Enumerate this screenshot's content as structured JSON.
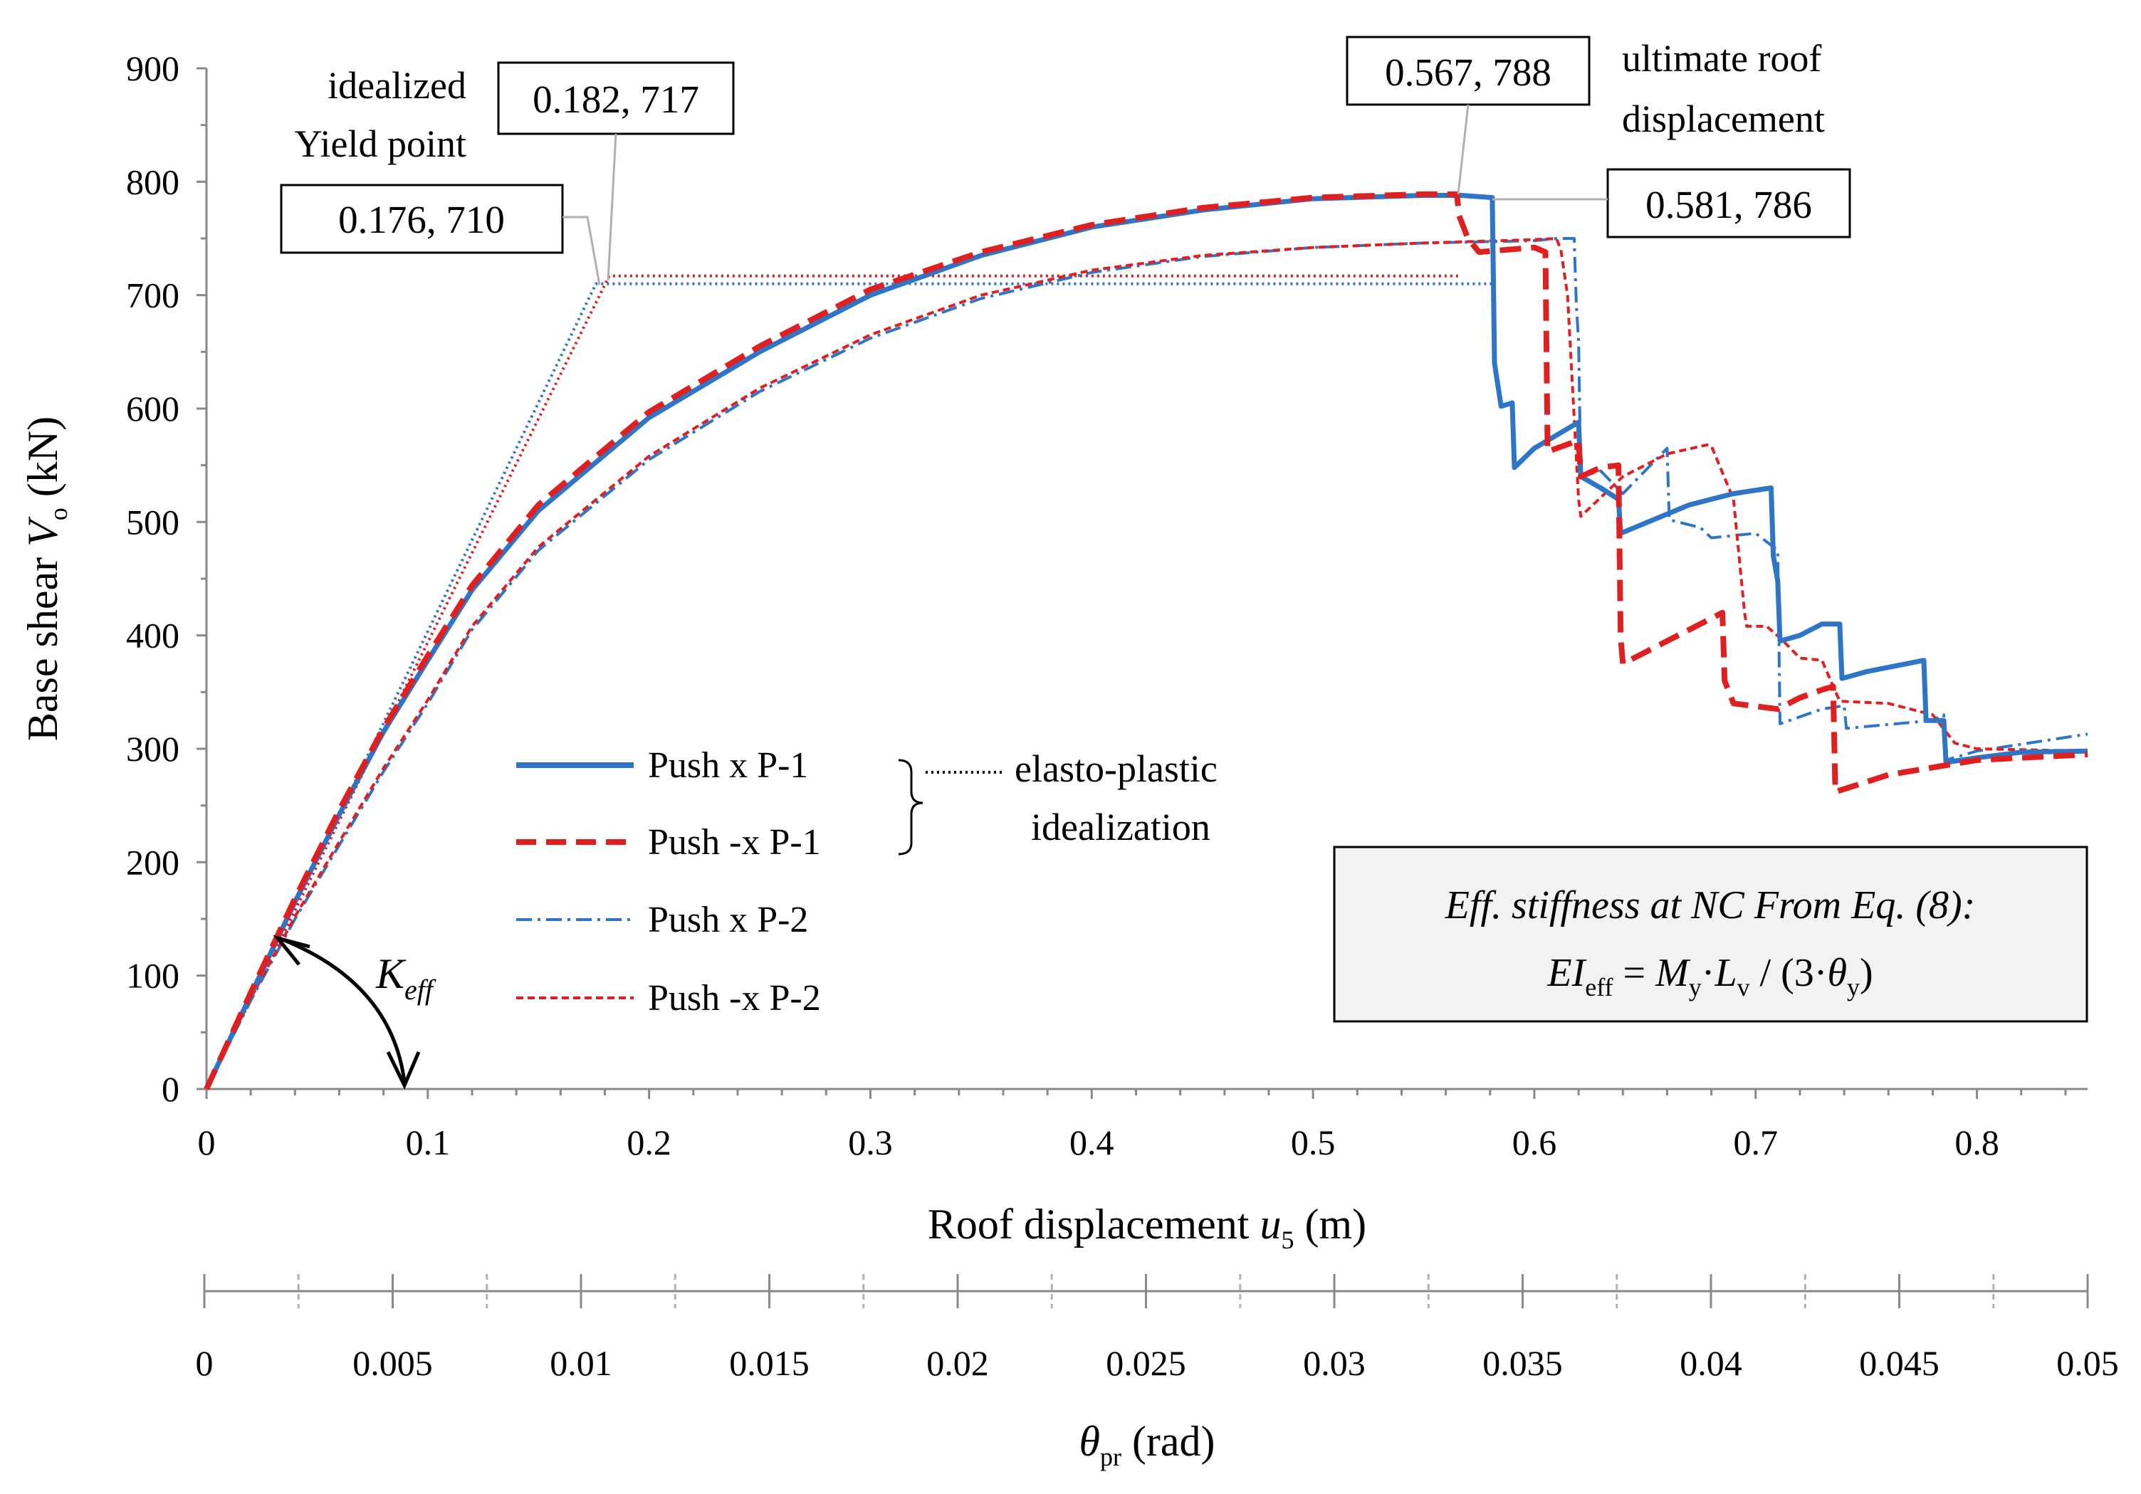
{
  "chart_data": {
    "type": "line",
    "xlabel": {
      "main": "Roof displacement ",
      "var": "u",
      "sub": "5",
      "unit": " (m)"
    },
    "ylabel": {
      "main": "Base shear ",
      "var": "V",
      "sub": "o",
      "unit": " (kN)"
    },
    "xlim": [
      0,
      0.85
    ],
    "ylim": [
      0,
      900
    ],
    "x_ticks": [
      0,
      0.1,
      0.2,
      0.3,
      0.4,
      0.5,
      0.6,
      0.7,
      0.8
    ],
    "x_tick_labels": [
      "0",
      "0.1",
      "0.2",
      "0.3",
      "0.4",
      "0.5",
      "0.6",
      "0.7",
      "0.8"
    ],
    "y_ticks": [
      0,
      100,
      200,
      300,
      400,
      500,
      600,
      700,
      800,
      900
    ],
    "y_tick_labels": [
      "0",
      "100",
      "200",
      "300",
      "400",
      "500",
      "600",
      "700",
      "800",
      "900"
    ],
    "secondary_xaxis": {
      "label_var": "θ",
      "label_sub": "pr",
      "label_unit": " (rad)",
      "range": [
        0,
        0.05
      ],
      "ticks": [
        0,
        0.005,
        0.01,
        0.015,
        0.02,
        0.025,
        0.03,
        0.035,
        0.04,
        0.045,
        0.05
      ],
      "tick_labels": [
        "0",
        "0.005",
        "0.01",
        "0.015",
        "0.02",
        "0.025",
        "0.03",
        "0.035",
        "0.04",
        "0.045",
        "0.05"
      ]
    },
    "series": [
      {
        "name": "Push x P-1",
        "color": "#2e75c8",
        "style": "solid",
        "points": [
          [
            0,
            0
          ],
          [
            0.02,
            83
          ],
          [
            0.04,
            165
          ],
          [
            0.06,
            242
          ],
          [
            0.08,
            315
          ],
          [
            0.1,
            378
          ],
          [
            0.12,
            440
          ],
          [
            0.15,
            510
          ],
          [
            0.2,
            592
          ],
          [
            0.25,
            650
          ],
          [
            0.3,
            700
          ],
          [
            0.35,
            735
          ],
          [
            0.4,
            760
          ],
          [
            0.45,
            775
          ],
          [
            0.5,
            785
          ],
          [
            0.55,
            788
          ],
          [
            0.567,
            788
          ],
          [
            0.581,
            786
          ],
          [
            0.582,
            640
          ],
          [
            0.585,
            602
          ],
          [
            0.59,
            605
          ],
          [
            0.591,
            548
          ],
          [
            0.6,
            565
          ],
          [
            0.62,
            588
          ],
          [
            0.621,
            540
          ],
          [
            0.63,
            530
          ],
          [
            0.638,
            520
          ],
          [
            0.639,
            490
          ],
          [
            0.67,
            515
          ],
          [
            0.69,
            525
          ],
          [
            0.707,
            530
          ],
          [
            0.708,
            470
          ],
          [
            0.71,
            448
          ],
          [
            0.711,
            395
          ],
          [
            0.72,
            400
          ],
          [
            0.73,
            410
          ],
          [
            0.738,
            410
          ],
          [
            0.739,
            362
          ],
          [
            0.75,
            368
          ],
          [
            0.776,
            378
          ],
          [
            0.777,
            325
          ],
          [
            0.785,
            325
          ],
          [
            0.786,
            288
          ],
          [
            0.8,
            292
          ],
          [
            0.82,
            297
          ],
          [
            0.85,
            298
          ]
        ]
      },
      {
        "name": "Push -x P-1",
        "color": "#e02020",
        "style": "dashed",
        "points": [
          [
            0,
            0
          ],
          [
            0.02,
            85
          ],
          [
            0.04,
            168
          ],
          [
            0.06,
            246
          ],
          [
            0.08,
            318
          ],
          [
            0.1,
            382
          ],
          [
            0.12,
            444
          ],
          [
            0.15,
            515
          ],
          [
            0.2,
            597
          ],
          [
            0.25,
            655
          ],
          [
            0.3,
            705
          ],
          [
            0.35,
            738
          ],
          [
            0.4,
            762
          ],
          [
            0.45,
            777
          ],
          [
            0.5,
            786
          ],
          [
            0.55,
            789
          ],
          [
            0.565,
            789
          ],
          [
            0.566,
            770
          ],
          [
            0.57,
            750
          ],
          [
            0.575,
            738
          ],
          [
            0.6,
            742
          ],
          [
            0.605,
            738
          ],
          [
            0.606,
            562
          ],
          [
            0.62,
            572
          ],
          [
            0.621,
            540
          ],
          [
            0.63,
            548
          ],
          [
            0.638,
            550
          ],
          [
            0.639,
            398
          ],
          [
            0.64,
            375
          ],
          [
            0.66,
            395
          ],
          [
            0.685,
            420
          ],
          [
            0.686,
            360
          ],
          [
            0.69,
            340
          ],
          [
            0.71,
            335
          ],
          [
            0.72,
            345
          ],
          [
            0.73,
            352
          ],
          [
            0.735,
            355
          ],
          [
            0.736,
            262
          ],
          [
            0.76,
            277
          ],
          [
            0.8,
            290
          ],
          [
            0.85,
            295
          ]
        ]
      },
      {
        "name": "Push x P-2",
        "color": "#2e75c8",
        "style": "dashdot",
        "points": [
          [
            0,
            0
          ],
          [
            0.02,
            78
          ],
          [
            0.04,
            150
          ],
          [
            0.06,
            215
          ],
          [
            0.08,
            280
          ],
          [
            0.1,
            340
          ],
          [
            0.12,
            405
          ],
          [
            0.15,
            475
          ],
          [
            0.2,
            555
          ],
          [
            0.25,
            615
          ],
          [
            0.3,
            662
          ],
          [
            0.35,
            697
          ],
          [
            0.4,
            720
          ],
          [
            0.45,
            734
          ],
          [
            0.5,
            742
          ],
          [
            0.55,
            746
          ],
          [
            0.6,
            748
          ],
          [
            0.61,
            750
          ],
          [
            0.618,
            750
          ],
          [
            0.619,
            690
          ],
          [
            0.62,
            660
          ],
          [
            0.621,
            540
          ],
          [
            0.63,
            545
          ],
          [
            0.64,
            525
          ],
          [
            0.66,
            565
          ],
          [
            0.661,
            502
          ],
          [
            0.675,
            495
          ],
          [
            0.68,
            486
          ],
          [
            0.7,
            490
          ],
          [
            0.71,
            475
          ],
          [
            0.711,
            322
          ],
          [
            0.73,
            335
          ],
          [
            0.74,
            338
          ],
          [
            0.741,
            318
          ],
          [
            0.78,
            325
          ],
          [
            0.785,
            330
          ],
          [
            0.786,
            290
          ],
          [
            0.8,
            298
          ],
          [
            0.85,
            313
          ]
        ]
      },
      {
        "name": "Push -x P-2",
        "color": "#e02020",
        "style": "shortdash",
        "points": [
          [
            0,
            0
          ],
          [
            0.02,
            80
          ],
          [
            0.04,
            152
          ],
          [
            0.06,
            218
          ],
          [
            0.08,
            283
          ],
          [
            0.1,
            343
          ],
          [
            0.12,
            408
          ],
          [
            0.15,
            478
          ],
          [
            0.2,
            558
          ],
          [
            0.25,
            618
          ],
          [
            0.3,
            665
          ],
          [
            0.35,
            700
          ],
          [
            0.4,
            722
          ],
          [
            0.45,
            735
          ],
          [
            0.5,
            742
          ],
          [
            0.55,
            746
          ],
          [
            0.6,
            749
          ],
          [
            0.61,
            750
          ],
          [
            0.612,
            740
          ],
          [
            0.615,
            700
          ],
          [
            0.62,
            520
          ],
          [
            0.621,
            505
          ],
          [
            0.64,
            540
          ],
          [
            0.66,
            560
          ],
          [
            0.678,
            568
          ],
          [
            0.68,
            567
          ],
          [
            0.69,
            520
          ],
          [
            0.695,
            420
          ],
          [
            0.696,
            408
          ],
          [
            0.705,
            408
          ],
          [
            0.712,
            396
          ],
          [
            0.72,
            380
          ],
          [
            0.73,
            378
          ],
          [
            0.735,
            355
          ],
          [
            0.738,
            342
          ],
          [
            0.76,
            340
          ],
          [
            0.78,
            330
          ],
          [
            0.79,
            305
          ],
          [
            0.8,
            300
          ],
          [
            0.85,
            298
          ]
        ]
      },
      {
        "name": "idealized x",
        "color": "#2e75c8",
        "style": "dotted",
        "points": [
          [
            0,
            0
          ],
          [
            0.176,
            710
          ],
          [
            0.581,
            710
          ]
        ]
      },
      {
        "name": "idealized -x",
        "color": "#e02020",
        "style": "dotted",
        "points": [
          [
            0,
            0
          ],
          [
            0.182,
            717
          ],
          [
            0.567,
            717
          ]
        ]
      }
    ],
    "annotations": {
      "yield_label_line1": "idealized",
      "yield_label_line2": "Yield point",
      "box_182": "0.182, 717",
      "box_176": "0.176, 710",
      "box_567": "0.567, 788",
      "box_581": "0.581, 786",
      "ultimate_line1": "ultimate roof",
      "ultimate_line2": "displacement",
      "keff_main": "K",
      "keff_sub": "eff",
      "legend_bracket_line1": "elasto-plastic",
      "legend_bracket_line2": "idealization",
      "note_line1": "Eff. stiffness at NC From Eq. (8):",
      "note_line2": {
        "ei": "EI",
        "ei_sub": "eff",
        "eq": " = ",
        "m": "M",
        "m_sub": "y",
        "dot": "·",
        "l": "L",
        "l_sub": "v",
        "rest": " / (3·",
        "theta": "θ",
        "theta_sub": "y",
        "close": ")"
      }
    }
  }
}
